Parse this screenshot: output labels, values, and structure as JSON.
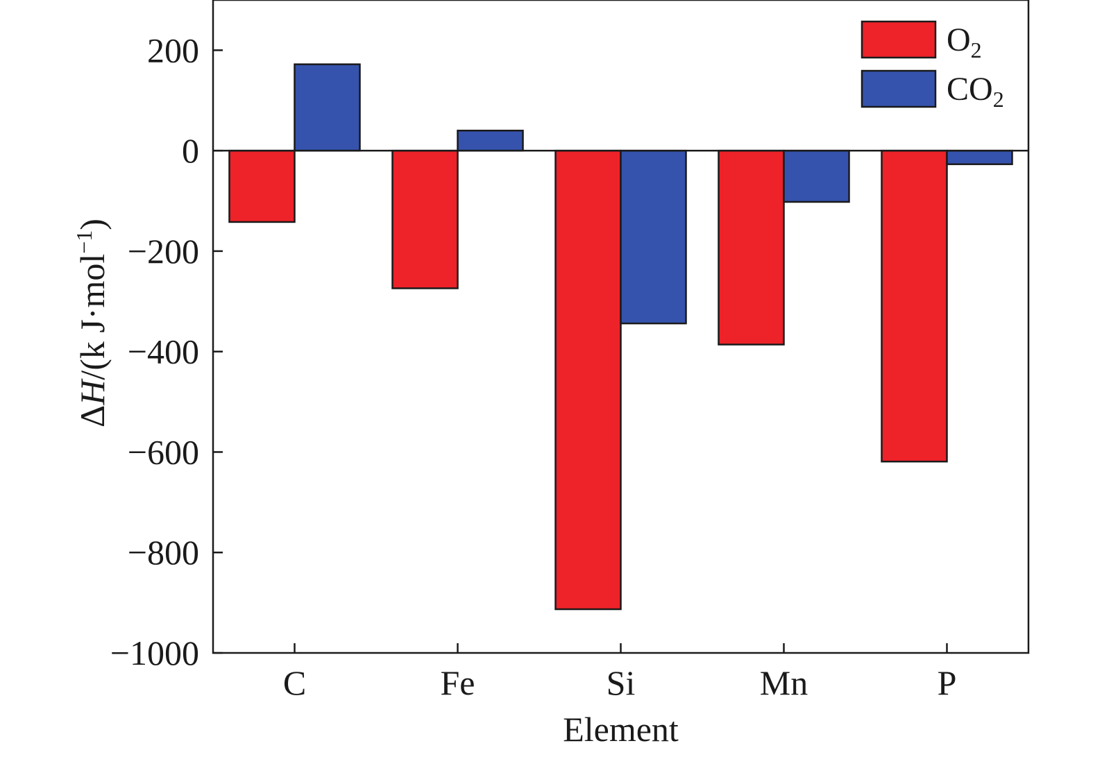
{
  "chart_data": {
    "type": "bar",
    "categories": [
      "C",
      "Fe",
      "Si",
      "Mn",
      "P"
    ],
    "series": [
      {
        "name": "O",
        "name_sub": "2",
        "color": "#ee2229",
        "values": [
          -142,
          -274,
          -913,
          -386,
          -619
        ]
      },
      {
        "name": "CO",
        "name_sub": "2",
        "color": "#3553ad",
        "values": [
          172,
          40,
          -344,
          -102,
          -27
        ]
      }
    ],
    "xlabel": "Element",
    "ylabel": {
      "delta": "Δ",
      "symbol": "H",
      "rest": "/(k J·mol",
      "sup": "−1",
      "close": ")"
    },
    "ylim": [
      -1000,
      300
    ],
    "yticks": [
      200,
      0,
      -200,
      -400,
      -600,
      -800,
      -1000
    ],
    "ytick_labels": [
      "200",
      "0",
      "−200",
      "−400",
      "−600",
      "−800",
      "−1000"
    ],
    "grid": false,
    "legend_position": "top-right"
  }
}
